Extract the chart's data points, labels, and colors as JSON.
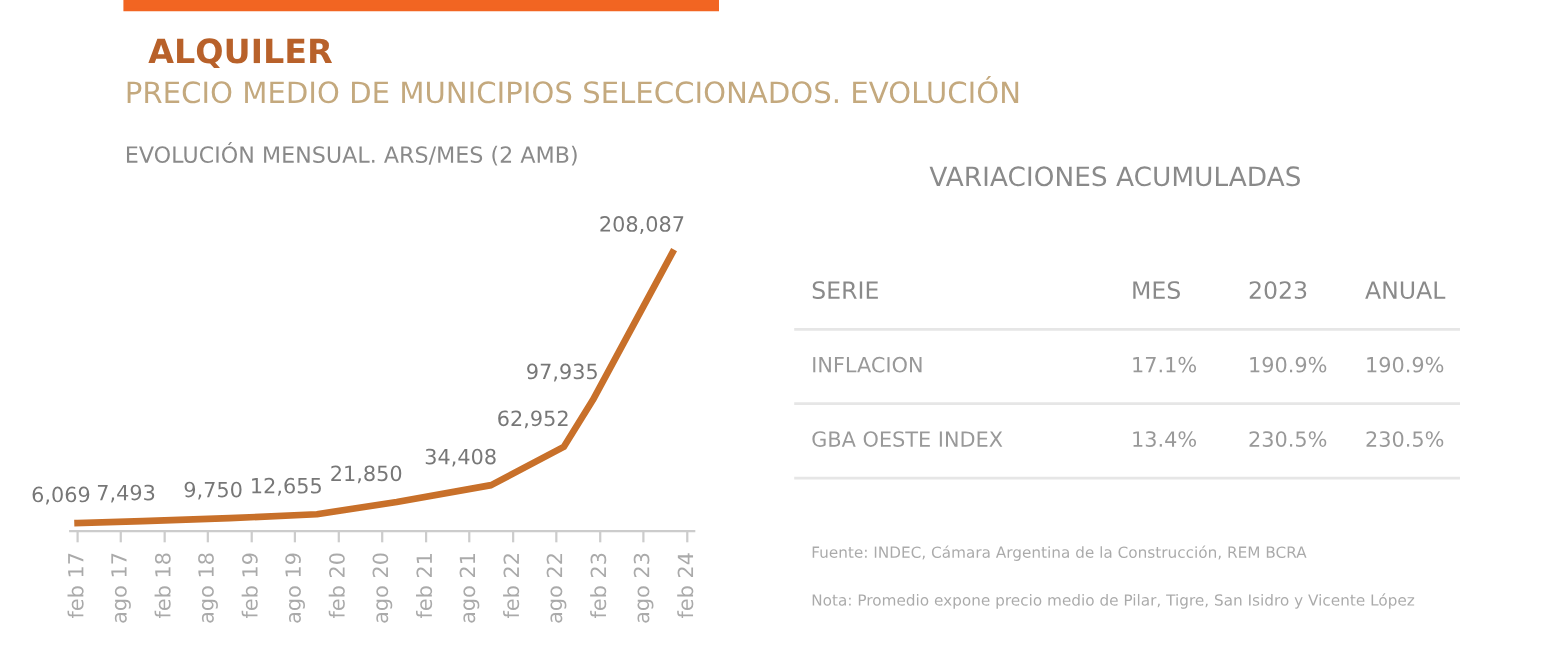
{
  "chart_data": [
    {
      "type": "line",
      "title": "ALQUILER",
      "subtitle": "PRECIO MEDIO DE MUNICIPIOS SELECCIONADOS. EVOLUCIÓN",
      "annotations": [
        "EVOLUCIÓN MENSUAL. ARS/MES (2 AMB)"
      ],
      "x": [
        "2017-02",
        "2017-11",
        "2018-11",
        "2019-11",
        "2020-10",
        "2021-11",
        "2022-09",
        "2023-01",
        "2023-12"
      ],
      "series": [
        {
          "color": "#c8702a",
          "values": [
            6069,
            7493,
            9750,
            12655,
            21850,
            34408,
            62952,
            97935,
            208087
          ],
          "value_labels": [
            "6,069",
            "7,493",
            "9,750",
            "12,655",
            "21,850",
            "34,408",
            "62,952",
            "97,935",
            "208,087"
          ]
        }
      ],
      "xlim": [
        "2017-01",
        "2024-03"
      ],
      "xticks": [
        {
          "value": "2017-02",
          "label": "feb 17"
        },
        {
          "value": "2017-08",
          "label": "ago 17"
        },
        {
          "value": "2018-02",
          "label": "feb 18"
        },
        {
          "value": "2018-08",
          "label": "ago 18"
        },
        {
          "value": "2019-02",
          "label": "feb 19"
        },
        {
          "value": "2019-08",
          "label": "ago 19"
        },
        {
          "value": "2020-02",
          "label": "feb 20"
        },
        {
          "value": "2020-08",
          "label": "ago 20"
        },
        {
          "value": "2021-02",
          "label": "feb 21"
        },
        {
          "value": "2021-08",
          "label": "ago 21"
        },
        {
          "value": "2022-02",
          "label": "feb 22"
        },
        {
          "value": "2022-08",
          "label": "ago 22"
        },
        {
          "value": "2023-02",
          "label": "feb 23"
        },
        {
          "value": "2023-08",
          "label": "ago 23"
        },
        {
          "value": "2024-02",
          "label": "feb 24"
        }
      ],
      "tick_labels": "x",
      "grid": false,
      "legend": false,
      "marker": "none",
      "line_style": "solid"
    },
    {
      "type": "other",
      "title": "VARIACIONES ACUMULADAS",
      "categories": [
        "SERIE",
        "MES",
        "2023",
        "ANUAL"
      ],
      "y_categories": [
        "INFLACION",
        "GBA OESTE INDEX"
      ],
      "cell_labels": [
        [
          "17.1%",
          "190.9%",
          "190.9%"
        ],
        [
          "13.4%",
          "230.5%",
          "230.5%"
        ]
      ],
      "annotations": [
        "Fuente: INDEC, Cámara Argentina de la Construcción, REM BCRA",
        "Nota: Promedio expone precio medio de Pilar, Tigre, San Isidro y Vicente López"
      ]
    }
  ]
}
